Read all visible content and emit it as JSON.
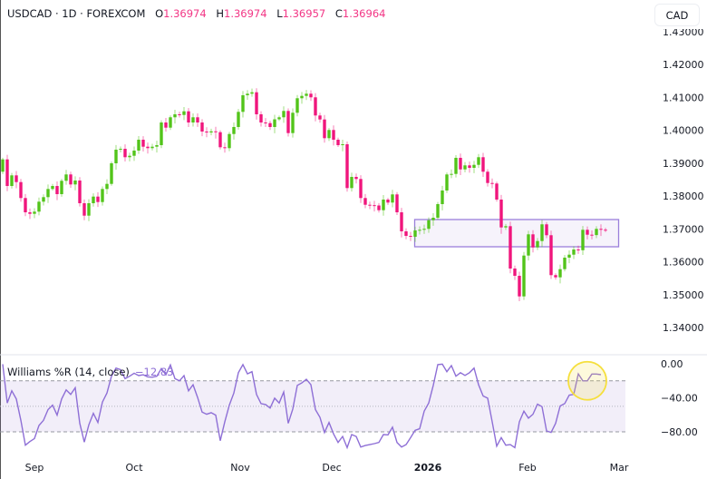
{
  "header": {
    "symbol": "USDCAD",
    "interval": "1D",
    "exchange": "FOREXCOM",
    "separator": "·",
    "ohlc": [
      {
        "key": "O",
        "value": "1.36974"
      },
      {
        "key": "H",
        "value": "1.36974"
      },
      {
        "key": "L",
        "value": "1.36957"
      },
      {
        "key": "C",
        "value": "1.36964"
      }
    ],
    "currency_button": "CAD"
  },
  "colors": {
    "up": "#52c41a",
    "down": "#f0157c",
    "indicator_line": "#8e6fd6",
    "indicator_band": "#7e57c2",
    "zone_box": "#9b7fdb",
    "highlight_circle": "#f5df3c",
    "ohlc_value": "#f23685"
  },
  "chart_data": [
    {
      "type": "candlestick",
      "title": "USDCAD · 1D · FOREXCOM",
      "y_axis_labels": [
        "1.43000",
        "1.42000",
        "1.41000",
        "1.40000",
        "1.39000",
        "1.38000",
        "1.37000",
        "1.36000",
        "1.35000",
        "1.34000"
      ],
      "y_ticks": [
        1.43,
        1.42,
        1.41,
        1.4,
        1.39,
        1.38,
        1.37,
        1.36,
        1.35,
        1.34
      ],
      "ylim": [
        1.3425,
        1.4332
      ],
      "first_open": 1.38737,
      "close": [
        1.39112,
        1.38303,
        1.38626,
        1.38422,
        1.37937,
        1.37503,
        1.37457,
        1.37523,
        1.37826,
        1.37964,
        1.38212,
        1.38303,
        1.38055,
        1.38461,
        1.38654,
        1.3835,
        1.38469,
        1.37779,
        1.37401,
        1.37779,
        1.37981,
        1.37815,
        1.38212,
        1.38367,
        1.38993,
        1.39407,
        1.39434,
        1.39178,
        1.39222,
        1.39379,
        1.3971,
        1.39498,
        1.39454,
        1.39498,
        1.39545,
        1.40234,
        1.40077,
        1.40392,
        1.40483,
        1.40463,
        1.40574,
        1.40234,
        1.40392,
        1.40234,
        1.39959,
        1.3993,
        1.39965,
        1.39939,
        1.39481,
        1.39454,
        1.39884,
        1.40097,
        1.40557,
        1.41062,
        1.41109,
        1.41153,
        1.40483,
        1.40234,
        1.40215,
        1.40097,
        1.4033,
        1.40392,
        1.40585,
        1.39912,
        1.4053,
        1.40971,
        1.41043,
        1.41109,
        1.40999,
        1.40447,
        1.40326,
        1.39757,
        1.40006,
        1.3971,
        1.39545,
        1.39572,
        1.3824,
        1.38579,
        1.38516,
        1.37937,
        1.37732,
        1.3772,
        1.3771,
        1.37567,
        1.3789,
        1.37799,
        1.38047,
        1.37503,
        1.36924,
        1.36786,
        1.36759,
        1.36952,
        1.36971,
        1.37,
        1.37263,
        1.37338,
        1.37752,
        1.38166,
        1.38654,
        1.3867,
        1.39159,
        1.38808,
        1.3893,
        1.38855,
        1.38946,
        1.39178,
        1.38737,
        1.38394,
        1.38378,
        1.3789,
        1.37043,
        1.37081,
        1.35793,
        1.35572,
        1.34946,
        1.36188,
        1.36833,
        1.36436,
        1.36629,
        1.37137,
        1.36806,
        1.35592,
        1.35526,
        1.35774,
        1.36124,
        1.36215,
        1.36372,
        1.3635,
        1.36971,
        1.36822,
        1.3681,
        1.36999,
        1.36974,
        1.36964
      ],
      "zone": {
        "top": 1.37283,
        "bottom": 1.36455,
        "from_bar": 91,
        "to_bar": 136
      },
      "x_axis_labels": [
        {
          "label": "Sep",
          "bar": 7,
          "bold": false
        },
        {
          "label": "Oct",
          "bar": 29,
          "bold": false
        },
        {
          "label": "Nov",
          "bar": 52.4,
          "bold": false
        },
        {
          "label": "Dec",
          "bar": 72.6,
          "bold": false
        },
        {
          "label": "2026",
          "bar": 93.8,
          "bold": true
        },
        {
          "label": "Feb",
          "bar": 115.8,
          "bold": false
        },
        {
          "label": "Mar",
          "bar": 136,
          "bold": false
        }
      ]
    },
    {
      "type": "line",
      "title": "Williams %R (14, close)",
      "last_value": "−12.83",
      "y_axis_labels": [
        "0.00",
        "−40.00",
        "−80.00"
      ],
      "y_ticks": [
        0,
        -40,
        -80
      ],
      "bands": {
        "upper": -20,
        "middle": -50,
        "lower": -80
      },
      "ylim": [
        -104,
        0
      ],
      "values": [
        -0.4,
        -46.1,
        -31.8,
        -41.4,
        -66.4,
        -95.7,
        -91.4,
        -87.9,
        -72.5,
        -66.4,
        -53.9,
        -48.6,
        -60.4,
        -41.4,
        -30.7,
        -36.1,
        -28.2,
        -70.0,
        -92.1,
        -71.8,
        -58.2,
        -69.0,
        -45.0,
        -34.3,
        -14.6,
        -5.0,
        -6.8,
        -17.5,
        -14.6,
        -11.1,
        -13.9,
        -12.9,
        -15.4,
        -15.8,
        -14.6,
        -5.7,
        -12.9,
        -1.4,
        -17.5,
        -20.0,
        -13.9,
        -31.8,
        -24.6,
        -39.6,
        -56.8,
        -59.3,
        -57.5,
        -60.4,
        -90.4,
        -68.2,
        -48.6,
        -34.3,
        -10.4,
        -1.0,
        -11.8,
        -9.3,
        -36.1,
        -46.8,
        -47.9,
        -52.1,
        -40.4,
        -46.1,
        -33.2,
        -70.0,
        -53.2,
        -25.4,
        -22.5,
        -18.2,
        -24.6,
        -53.9,
        -62.9,
        -80.7,
        -69.0,
        -82.5,
        -92.5,
        -85.4,
        -98.6,
        -83.2,
        -85.4,
        -97.9,
        -96.1,
        -95.0,
        -93.9,
        -92.5,
        -83.2,
        -83.6,
        -74.6,
        -92.5,
        -97.9,
        -95.0,
        -86.8,
        -78.2,
        -76.4,
        -55.7,
        -46.1,
        -25.4,
        -1.0,
        -0.4,
        -9.3,
        -2.1,
        -14.6,
        -10.4,
        -13.6,
        -10.4,
        -5.0,
        -24.6,
        -37.9,
        -40.4,
        -68.2,
        -96.8,
        -86.8,
        -95.7,
        -95.0,
        -98.6,
        -68.2,
        -55.7,
        -63.9,
        -59.3,
        -47.5,
        -50.4,
        -78.9,
        -80.7,
        -70.0,
        -49.6,
        -46.8,
        -36.8,
        -36.1,
        -11.8,
        -20.0,
        -20.0,
        -12.1,
        -12.1,
        -12.83
      ]
    }
  ]
}
